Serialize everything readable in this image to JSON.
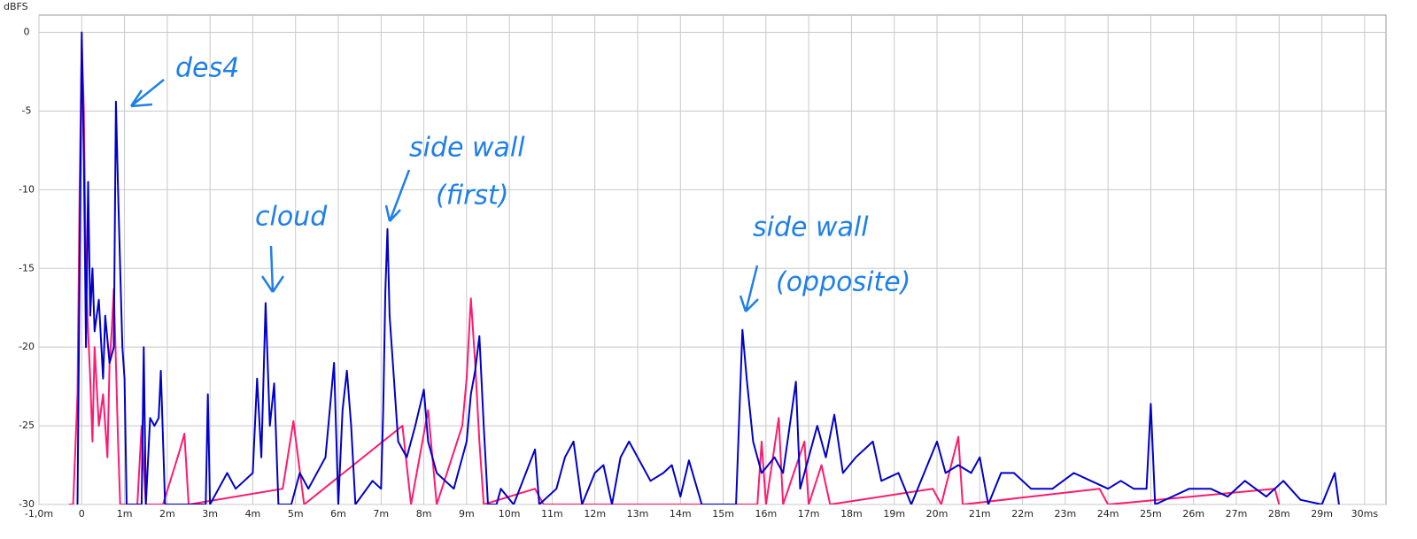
{
  "chart_data": {
    "type": "line",
    "y_label": "dBFS",
    "annotations": [
      "des4",
      "side wall",
      "(first)",
      "cloud",
      "side wall",
      "(opposite)"
    ],
    "xlim": [
      -1,
      30.5
    ],
    "ylim": [
      -30,
      1.1
    ],
    "xticks": [
      {
        "value": -1,
        "label": "-1,0m"
      },
      0,
      {
        "value": 1,
        "label": "1m"
      },
      {
        "value": 2,
        "label": "2m"
      },
      {
        "value": 3,
        "label": "3m"
      },
      {
        "value": 4,
        "label": "4m"
      },
      {
        "value": 5,
        "label": "5m"
      },
      {
        "value": 6,
        "label": "6m"
      },
      {
        "value": 7,
        "label": "7m"
      },
      {
        "value": 8,
        "label": "8m"
      },
      {
        "value": 9,
        "label": "9m"
      },
      {
        "value": 10,
        "label": "10m"
      },
      {
        "value": 11,
        "label": "11m"
      },
      {
        "value": 12,
        "label": "12m"
      },
      {
        "value": 13,
        "label": "13m"
      },
      {
        "value": 14,
        "label": "14m"
      },
      {
        "value": 15,
        "label": "15m"
      },
      {
        "value": 16,
        "label": "16m"
      },
      {
        "value": 17,
        "label": "17m"
      },
      {
        "value": 18,
        "label": "18m"
      },
      {
        "value": 19,
        "label": "19m"
      },
      {
        "value": 20,
        "label": "20m"
      },
      {
        "value": 21,
        "label": "21m"
      },
      {
        "value": 22,
        "label": "22m"
      },
      {
        "value": 23,
        "label": "23m"
      },
      {
        "value": 24,
        "label": "24m"
      },
      {
        "value": 25,
        "label": "25m"
      },
      {
        "value": 26,
        "label": "26m"
      },
      {
        "value": 27,
        "label": "27m"
      },
      {
        "value": 28,
        "label": "28m"
      },
      {
        "value": 29,
        "label": "29m"
      },
      {
        "value": 30,
        "label": "30ms"
      }
    ],
    "yticks": [
      0,
      -5,
      -10,
      -15,
      -20,
      -25,
      -30
    ],
    "grid": true,
    "series": [
      {
        "name": "pink",
        "color": "#ff1a6e",
        "x": [
          -0.3,
          -0.2,
          -0.1,
          -0.05,
          0,
          0.05,
          0.1,
          0.2,
          0.25,
          0.3,
          0.4,
          0.5,
          0.6,
          0.65,
          0.7,
          0.75,
          0.8,
          0.85,
          0.9,
          1.3,
          1.4,
          1.5,
          1.9,
          2.3,
          2.4,
          2.5,
          4.7,
          4.95,
          5.2,
          7.5,
          7.7,
          8.1,
          8.3,
          8.9,
          9.0,
          9.1,
          9.2,
          9.3,
          9.4,
          10.6,
          10.8,
          15.8,
          15.9,
          16.0,
          16.3,
          16.4,
          16.9,
          17.0,
          17.3,
          17.5,
          19.9,
          20.1,
          20.5,
          20.6,
          23.8,
          24.0,
          27.9,
          28.0
        ],
        "values": [
          -30,
          -30,
          -23,
          -10,
          -0.5,
          -5,
          -16,
          -22,
          -26,
          -20,
          -25,
          -23,
          -27,
          -21,
          -19,
          -16.3,
          -21,
          -26,
          -30,
          -30,
          -25,
          -30,
          -30,
          -26.5,
          -25.5,
          -30,
          -29,
          -24.7,
          -30,
          -25,
          -30,
          -24,
          -30,
          -25,
          -22,
          -16.9,
          -21,
          -26,
          -30,
          -29,
          -30,
          -30,
          -26,
          -30,
          -24.5,
          -30,
          -26,
          -30,
          -27.5,
          -30,
          -29,
          -30,
          -25.7,
          -30,
          -29,
          -30,
          -29,
          -30
        ]
      },
      {
        "name": "blue",
        "color": "#0000c8",
        "x": [
          -0.1,
          0,
          0.05,
          0.1,
          0.15,
          0.2,
          0.25,
          0.3,
          0.4,
          0.5,
          0.55,
          0.65,
          0.75,
          0.8,
          0.85,
          0.9,
          0.95,
          1.0,
          1.05,
          1.4,
          1.45,
          1.5,
          1.6,
          1.7,
          1.8,
          1.85,
          1.95,
          2.9,
          2.95,
          3.0,
          3.4,
          3.6,
          3.8,
          4.0,
          4.1,
          4.2,
          4.3,
          4.4,
          4.5,
          4.6,
          4.9,
          5.1,
          5.3,
          5.7,
          5.9,
          6.0,
          6.1,
          6.2,
          6.3,
          6.4,
          6.8,
          7.0,
          7.05,
          7.1,
          7.15,
          7.2,
          7.3,
          7.4,
          7.6,
          7.8,
          8.0,
          8.1,
          8.3,
          8.5,
          8.7,
          9.0,
          9.1,
          9.2,
          9.3,
          9.4,
          9.5,
          9.7,
          9.8,
          10.1,
          10.6,
          10.7,
          11.1,
          11.3,
          11.5,
          11.7,
          12.0,
          12.2,
          12.4,
          12.6,
          12.8,
          13.0,
          13.3,
          13.6,
          13.8,
          14.0,
          14.2,
          14.5,
          15.3,
          15.45,
          15.55,
          15.7,
          15.9,
          16.2,
          16.4,
          16.7,
          16.8,
          17.2,
          17.4,
          17.6,
          17.8,
          18.1,
          18.5,
          18.7,
          19.1,
          19.4,
          19.7,
          20.0,
          20.2,
          20.5,
          20.8,
          21.0,
          21.2,
          21.5,
          21.8,
          22.2,
          22.7,
          23.2,
          23.6,
          24.0,
          24.3,
          24.6,
          24.9,
          25.0,
          25.1,
          25.5,
          25.9,
          26.4,
          26.8,
          27.2,
          27.7,
          28.1,
          28.5,
          29.0,
          29.3,
          29.4
        ],
        "values": [
          -30,
          0,
          -8,
          -20,
          -9.5,
          -18,
          -15,
          -19,
          -17,
          -22,
          -18,
          -21,
          -20,
          -4.4,
          -10,
          -15,
          -20,
          -22,
          -30,
          -30,
          -20,
          -30,
          -24.5,
          -25,
          -24.5,
          -21.5,
          -30,
          -30,
          -23,
          -30,
          -28,
          -29,
          -28.5,
          -28,
          -22,
          -27,
          -17.2,
          -25,
          -22.3,
          -30,
          -30,
          -28,
          -29,
          -27,
          -21,
          -30,
          -24,
          -21.5,
          -25,
          -30,
          -28.5,
          -29,
          -24,
          -16.5,
          -12.5,
          -18,
          -22,
          -26,
          -27,
          -25,
          -22.7,
          -26,
          -28,
          -28.5,
          -29,
          -26,
          -23,
          -21.5,
          -19.3,
          -25,
          -30,
          -30,
          -29,
          -30,
          -26.5,
          -30,
          -29,
          -27,
          -26,
          -30,
          -28,
          -27.5,
          -30,
          -27,
          -26,
          -27,
          -28.5,
          -28,
          -27.5,
          -29.5,
          -27.2,
          -30,
          -30,
          -18.9,
          -22,
          -26,
          -28,
          -27,
          -28,
          -22.2,
          -29,
          -25,
          -27,
          -24.3,
          -28,
          -27,
          -26,
          -28.5,
          -28,
          -30,
          -28,
          -26,
          -28,
          -27.5,
          -28,
          -27,
          -30,
          -28,
          -28,
          -29,
          -29,
          -28,
          -28.5,
          -29,
          -28.5,
          -29,
          -29,
          -23.6,
          -30,
          -29.5,
          -29,
          -29,
          -29.5,
          -28.5,
          -29.5,
          -28.5,
          -29.7,
          -30,
          -28,
          -30
        ]
      }
    ]
  }
}
